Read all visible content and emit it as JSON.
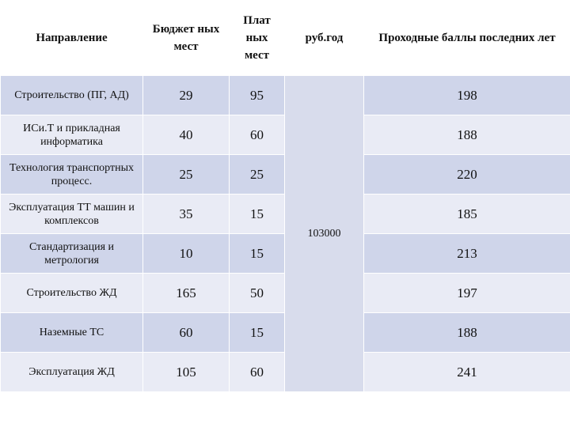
{
  "headers": {
    "direction": "Направление",
    "budget": "Бюджет ных мест",
    "paid": "Плат ных мест",
    "price": "руб.год",
    "scores": "Проходные баллы последних лет"
  },
  "price_value": "103000",
  "rows": [
    {
      "name": "Строительство (ПГ, АД)",
      "budget": "29",
      "paid": "95",
      "score": "198"
    },
    {
      "name": "ИСи.Т и прикладная информатика",
      "budget": "40",
      "paid": "60",
      "score": "188"
    },
    {
      "name": "Технология транспортных процесс.",
      "budget": "25",
      "paid": "25",
      "score": "220"
    },
    {
      "name": "Эксплуатация ТТ машин и комплексов",
      "budget": "35",
      "paid": "15",
      "score": "185"
    },
    {
      "name": "Стандартизация и метрология",
      "budget": "10",
      "paid": "15",
      "score": "213"
    },
    {
      "name": "Строительство ЖД",
      "budget": "165",
      "paid": "50",
      "score": "197"
    },
    {
      "name": "Наземные ТС",
      "budget": "60",
      "paid": "15",
      "score": "188"
    },
    {
      "name": "Эксплуатация ЖД",
      "budget": "105",
      "paid": "60",
      "score": "241"
    }
  ]
}
